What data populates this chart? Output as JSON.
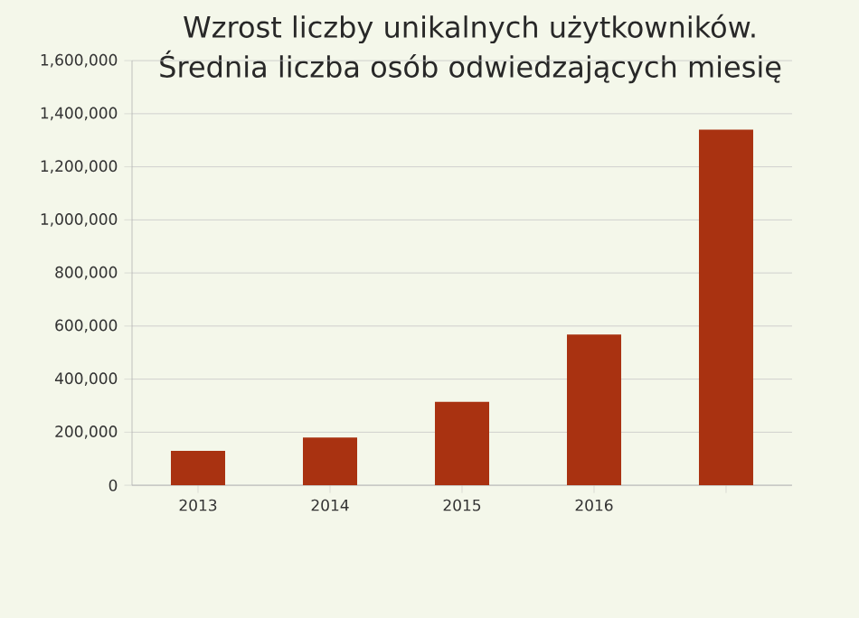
{
  "chart_data": {
    "type": "bar",
    "title": "Wzrost liczby unikalnych użytkowników.",
    "subtitle": "Średnia liczba osób odwiedzających miesię",
    "categories": [
      "2013",
      "2014",
      "2015",
      "2016",
      null
    ],
    "values": [
      130000,
      180000,
      314000,
      568000,
      1340000
    ],
    "color": "#a93211",
    "ylim": [
      0,
      1600000
    ],
    "yticks": [
      {
        "value": 0,
        "label": "0"
      },
      {
        "value": 200000,
        "label": "200,000"
      },
      {
        "value": 400000,
        "label": "400,000"
      },
      {
        "value": 600000,
        "label": "600,000"
      },
      {
        "value": 800000,
        "label": "800,000"
      },
      {
        "value": 1000000,
        "label": "1,000,000"
      },
      {
        "value": 1200000,
        "label": "1,200,000"
      },
      {
        "value": 1400000,
        "label": "1,400,000"
      },
      {
        "value": 1600000,
        "label": "1,600,000"
      }
    ],
    "grid": "y"
  }
}
